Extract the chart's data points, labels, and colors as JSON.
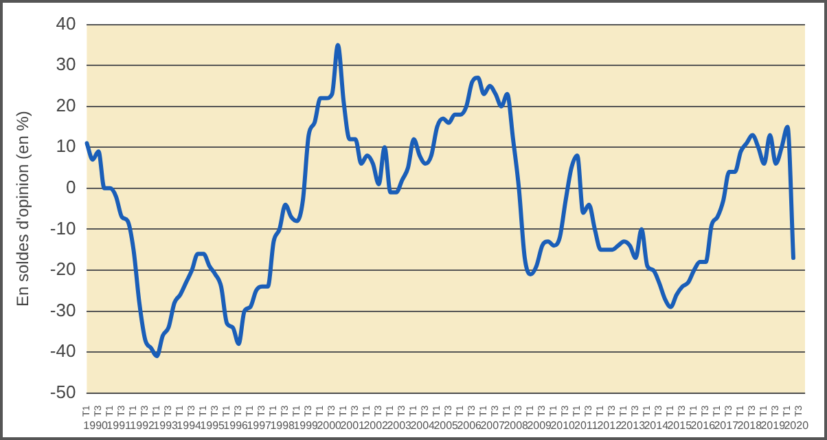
{
  "chart_data": {
    "type": "line",
    "ylabel": "En soldes d'opinion (en %)",
    "categories": [
      "T1",
      null,
      "T3",
      null,
      "T1",
      null,
      "T3",
      null,
      "T1",
      null,
      "T3",
      null,
      "T1",
      null,
      "T3",
      null,
      "T1",
      null,
      "T3",
      null,
      "T1",
      null,
      "T3",
      null,
      "T1",
      null,
      "T3",
      null,
      "T1",
      null,
      "T3",
      null,
      "T1",
      null,
      "T3",
      null,
      "T1",
      null,
      "T3",
      null,
      "T1",
      null,
      "T3",
      null,
      "T1",
      null,
      "T3",
      null,
      "T1",
      null,
      "T3",
      null,
      "T1",
      null,
      "T3",
      null,
      "T1",
      null,
      "T3",
      null,
      "T1",
      null,
      "T3",
      null,
      "T1",
      null,
      "T3",
      null,
      "T1",
      null,
      "T3",
      null,
      "T1",
      null,
      "T3",
      null,
      "T1",
      null,
      "T3",
      null,
      "T1",
      null,
      "T3",
      null,
      "T1",
      null,
      "T3",
      null,
      "T1",
      null,
      "T3",
      null,
      "T1",
      null,
      "T3",
      null,
      "T1",
      null,
      "T3",
      null,
      "T1",
      null,
      "T3",
      null,
      "T1",
      null,
      "T3",
      null,
      "T1",
      null,
      "T3",
      null,
      "T1",
      null,
      "T3",
      null,
      "T1",
      null,
      "T3",
      null,
      "T1",
      null,
      "T3",
      null
    ],
    "series": [
      {
        "color": "#1a5eb8",
        "values": [
          11,
          7,
          9,
          0,
          0,
          -2,
          -7,
          -8,
          -15,
          -28,
          -37,
          -39,
          -41,
          -36,
          -34,
          -28,
          -26,
          -23,
          -20,
          -16,
          -16,
          -19,
          -21,
          -24,
          -33,
          -34,
          -38,
          -30,
          -29,
          -25,
          -24,
          -24,
          -13,
          -10,
          -4,
          -7,
          -8,
          -3,
          13,
          16,
          22,
          22,
          23,
          35,
          21,
          12,
          12,
          6,
          8,
          6,
          1,
          10,
          -1,
          -1,
          2,
          5,
          12,
          8,
          6,
          8,
          15,
          17,
          16,
          18,
          18,
          20,
          26,
          27,
          23,
          25,
          23,
          20,
          23,
          12,
          0,
          -17,
          -21,
          -19,
          -14,
          -13,
          -14,
          -12,
          -3,
          5,
          8,
          -6,
          -4,
          -10,
          -15,
          -15,
          -15,
          -14,
          -13,
          -14,
          -17,
          -10,
          -19,
          -20,
          -23,
          -27,
          -29,
          -26,
          -24,
          -23,
          -20,
          -18,
          -18,
          -9,
          -7,
          -3,
          4,
          4,
          9,
          11,
          13,
          10,
          6,
          13,
          6,
          10,
          15,
          -17,
          null,
          null
        ]
      }
    ],
    "ylim": [
      -50,
      40
    ],
    "yticks": [
      -50,
      -40,
      -30,
      -20,
      -10,
      0,
      10,
      20,
      30,
      40
    ],
    "grid": "y",
    "marker": "none",
    "line_style": "solid",
    "legend": false,
    "annotations": [
      "1990",
      "1991",
      "1992",
      "1993",
      "1994",
      "1995",
      "1996",
      "1997",
      "1998",
      "1999",
      "2000",
      "2001",
      "2002",
      "2003",
      "2004",
      "2005",
      "2006",
      "2007",
      "2008",
      "2009",
      "2010",
      "2011",
      "2012",
      "2013",
      "2014",
      "2015",
      "2016",
      "2017",
      "2018",
      "2019",
      "2020"
    ]
  }
}
